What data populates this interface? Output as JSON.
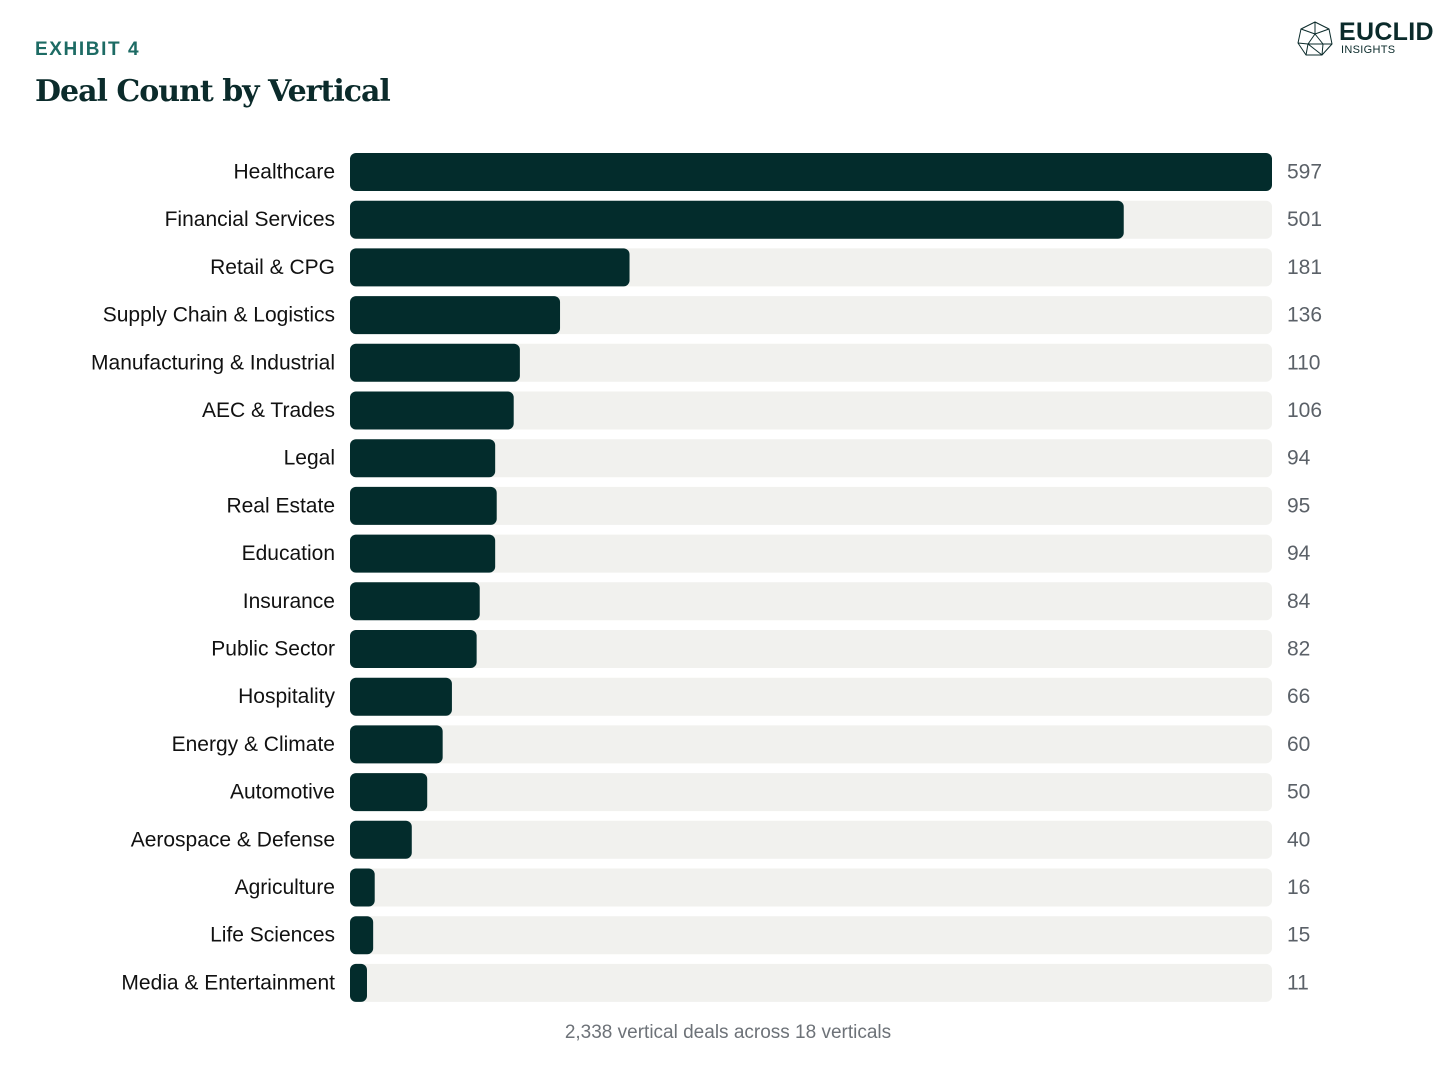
{
  "header": {
    "exhibit": "EXHIBIT 4",
    "title": "Deal Count by Vertical"
  },
  "logo": {
    "name": "EUCLID",
    "sub": "INSIGHTS"
  },
  "footnote": "2,338 vertical deals across 18 verticals",
  "colors": {
    "bar": "#032c2c",
    "track": "#f1f1ee",
    "label": "#111111",
    "value": "#5b6168",
    "accent": "#1d6b64"
  },
  "chart_data": {
    "type": "bar",
    "orientation": "horizontal",
    "title": "Deal Count by Vertical",
    "xlabel": "",
    "ylabel": "",
    "xlim": [
      0,
      597
    ],
    "categories": [
      "Healthcare",
      "Financial Services",
      "Retail & CPG",
      "Supply Chain & Logistics",
      "Manufacturing & Industrial",
      "AEC & Trades",
      "Legal",
      "Real Estate",
      "Education",
      "Insurance",
      "Public Sector",
      "Hospitality",
      "Energy & Climate",
      "Automotive",
      "Aerospace & Defense",
      "Agriculture",
      "Life Sciences",
      "Media & Entertainment"
    ],
    "values": [
      597,
      501,
      181,
      136,
      110,
      106,
      94,
      95,
      94,
      84,
      82,
      66,
      60,
      50,
      40,
      16,
      15,
      11
    ],
    "data_labels": [
      "597",
      "501",
      "181",
      "136",
      "110",
      "106",
      "94",
      "95",
      "94",
      "84",
      "82",
      "66",
      "60",
      "50",
      "40",
      "16",
      "15",
      "11"
    ]
  }
}
